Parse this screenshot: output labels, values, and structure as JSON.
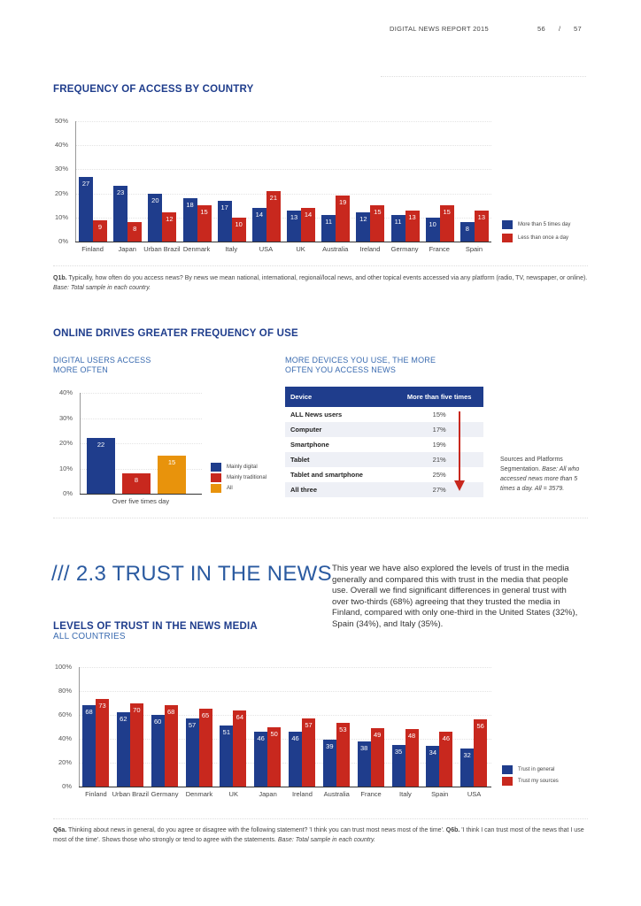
{
  "header": {
    "report": "DIGITAL NEWS REPORT 2015",
    "page_left": "56",
    "sep": "/",
    "page_right": "57"
  },
  "colors": {
    "navy": "#1f3d8c",
    "red": "#c8281e",
    "orange": "#e8930c"
  },
  "section1": {
    "title": "FREQUENCY OF ACCESS BY COUNTRY",
    "note_bold": "Q1b.",
    "note": " Typically, how often do you access news? By news we mean national, international, regional/local news, and other topical events accessed via any platform (radio, TV, newspaper, or online). ",
    "note_italic": "Base: Total sample in each country."
  },
  "section2": {
    "title": "ONLINE DRIVES GREATER FREQUENCY OF USE",
    "left_sub1": "DIGITAL USERS ACCESS",
    "left_sub2": "MORE OFTEN",
    "right_sub1": "MORE DEVICES YOU USE, THE MORE",
    "right_sub2": "OFTEN YOU ACCESS NEWS",
    "table": {
      "headers": [
        "Device",
        "More than five times"
      ],
      "rows": [
        [
          "ALL News users",
          "15%"
        ],
        [
          "Computer",
          "17%"
        ],
        [
          "Smartphone",
          "19%"
        ],
        [
          "Tablet",
          "21%"
        ],
        [
          "Tablet and smartphone",
          "25%"
        ],
        [
          "All three",
          "27%"
        ]
      ]
    },
    "side_note": "Sources and Platforms Segmentation. ",
    "side_note_italic": "Base: All who accessed news more than 5 times a day. All = 3579."
  },
  "section3": {
    "heading": "/// 2.3 TRUST IN THE NEWS",
    "paragraph": "This year we have also explored the levels of trust in the media generally and compared this with trust in the media that people use. Overall we find significant differences in general trust with over two-thirds (68%) agreeing that they trusted the media in Finland, compared with only one-third in the United States (32%), Spain (34%), and Italy (35%).",
    "title": "LEVELS OF TRUST IN THE NEWS MEDIA",
    "subtitle": "ALL COUNTRIES",
    "note_a_bold": "Q6a.",
    "note_a": " Thinking about news in general, do you agree or disagree with the following statement? 'I think you can trust most news most of the time'. ",
    "note_b_bold": "Q6b.",
    "note_b": " 'I think I can trust most of the news that I use most of the time'. Shows those who strongly or tend to agree with the statements. ",
    "note_italic": "Base: Total sample in each country."
  },
  "chart_data": [
    {
      "type": "bar",
      "categories": [
        "Finland",
        "Japan",
        "Urban Brazil",
        "Denmark",
        "Italy",
        "USA",
        "UK",
        "Australia",
        "Ireland",
        "Germany",
        "France",
        "Spain"
      ],
      "series": [
        {
          "name": "More than 5 times day",
          "values": [
            27,
            23,
            20,
            18,
            17,
            14,
            13,
            11,
            12,
            11,
            10,
            8
          ]
        },
        {
          "name": "Less than once a day",
          "values": [
            9,
            8,
            12,
            15,
            10,
            21,
            14,
            19,
            15,
            13,
            15,
            13
          ]
        }
      ],
      "yticks": [
        "0%",
        "10%",
        "20%",
        "30%",
        "40%",
        "50%"
      ],
      "ylim": [
        0,
        50
      ],
      "legend": "right"
    },
    {
      "type": "bar",
      "categories": [
        "Over five times day"
      ],
      "series": [
        {
          "name": "Mainly digital",
          "values": [
            22
          ]
        },
        {
          "name": "Mainly traditional",
          "values": [
            8
          ]
        },
        {
          "name": "All",
          "values": [
            15
          ]
        }
      ],
      "yticks": [
        "0%",
        "10%",
        "20%",
        "30%",
        "40%"
      ],
      "ylim": [
        0,
        40
      ],
      "legend": "right"
    },
    {
      "type": "bar",
      "categories": [
        "Finland",
        "Urban Brazil",
        "Germany",
        "Denmark",
        "UK",
        "Japan",
        "Ireland",
        "Australia",
        "France",
        "Italy",
        "Spain",
        "USA"
      ],
      "series": [
        {
          "name": "Trust in general",
          "values": [
            68,
            62,
            60,
            57,
            51,
            46,
            46,
            39,
            38,
            35,
            34,
            32
          ]
        },
        {
          "name": "Trust my sources",
          "values": [
            73,
            70,
            68,
            65,
            64,
            50,
            57,
            53,
            49,
            48,
            46,
            56
          ]
        }
      ],
      "yticks": [
        "0%",
        "20%",
        "40%",
        "60%",
        "80%",
        "100%"
      ],
      "ylim": [
        0,
        100
      ],
      "legend": "right"
    }
  ]
}
